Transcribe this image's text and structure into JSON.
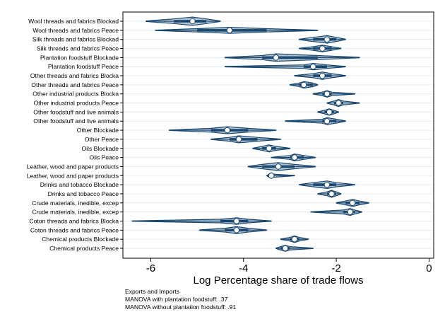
{
  "chart_data": {
    "type": "violin",
    "title": "",
    "xlabel": "Log Percentage share of trade flows",
    "ylabel": "",
    "xlim": [
      -6.6,
      0.1
    ],
    "xticks": [
      -6,
      -4,
      -2,
      0
    ],
    "xtick_labels": [
      "-6",
      "-4",
      "-2",
      "0"
    ],
    "grid": "horizontal",
    "fill_color": "#1a476f",
    "categories": [
      "Wool threads and fabrics Blockad",
      "Wool threads and fabrics Peace",
      "Silk threads and fabrics Blockad",
      "Silk threads and fabrics Peace",
      "Plantation foodstuff Blockade",
      "Plantation foodstuff Peace",
      "Other threads and fabrics Blocka",
      "Other threads and fabrics Peace",
      "Other industrial products Blocka",
      "Other industrial products Peace",
      "Other foodstuff and live animals",
      "Other foodstuff and live animals",
      "Other Blockade",
      "Other Peace",
      "Oils Blockade",
      "Oils Peace",
      "Leather, wood and paper products",
      "Leather, wood and paper products",
      "Drinks and tobacco Blockade",
      "Drinks and tobacco Peace",
      "Crude materials, inedible, excep",
      "Crude materials, inedible, excep",
      "Coton threads and fabrics Blocka",
      "Coton threads and fabrics Peace",
      "Chemical products Blockade",
      "Chemical products Peace"
    ],
    "series": [
      {
        "min": -6.1,
        "q1": -5.5,
        "median": -5.1,
        "q3": -4.8,
        "max": -4.5,
        "width": 0.9
      },
      {
        "min": -5.9,
        "q1": -5.0,
        "median": -4.3,
        "q3": -3.5,
        "max": -2.4,
        "width": 0.65
      },
      {
        "min": -2.8,
        "q1": -2.5,
        "median": -2.2,
        "q3": -2.0,
        "max": -1.8,
        "width": 0.8
      },
      {
        "min": -2.8,
        "q1": -2.5,
        "median": -2.3,
        "q3": -2.1,
        "max": -1.9,
        "width": 0.7
      },
      {
        "min": -4.4,
        "q1": -3.6,
        "median": -3.3,
        "q3": -2.4,
        "max": -1.5,
        "width": 0.8
      },
      {
        "min": -4.4,
        "q1": -2.7,
        "median": -2.5,
        "q3": -2.2,
        "max": -1.8,
        "width": 0.7
      },
      {
        "min": -2.9,
        "q1": -2.5,
        "median": -2.3,
        "q3": -2.1,
        "max": -1.8,
        "width": 0.8
      },
      {
        "min": -3.0,
        "q1": -2.8,
        "median": -2.7,
        "q3": -2.5,
        "max": -2.4,
        "width": 0.7
      },
      {
        "min": -2.5,
        "q1": -2.3,
        "median": -2.2,
        "q3": -2.1,
        "max": -1.6,
        "width": 0.7
      },
      {
        "min": -2.2,
        "q1": -2.05,
        "median": -1.95,
        "q3": -1.85,
        "max": -1.5,
        "width": 0.75
      },
      {
        "min": -2.4,
        "q1": -2.25,
        "median": -2.15,
        "q3": -2.05,
        "max": -1.95,
        "width": 0.7
      },
      {
        "min": -3.1,
        "q1": -2.3,
        "median": -2.2,
        "q3": -2.0,
        "max": -1.8,
        "width": 0.75
      },
      {
        "min": -5.6,
        "q1": -4.7,
        "median": -4.35,
        "q3": -3.9,
        "max": -3.3,
        "width": 0.75
      },
      {
        "min": -4.7,
        "q1": -4.3,
        "median": -4.1,
        "q3": -3.7,
        "max": -3.2,
        "width": 0.75
      },
      {
        "min": -3.8,
        "q1": -3.6,
        "median": -3.45,
        "q3": -3.3,
        "max": -3.0,
        "width": 0.75
      },
      {
        "min": -3.4,
        "q1": -3.0,
        "median": -2.9,
        "q3": -2.7,
        "max": -2.45,
        "width": 0.75
      },
      {
        "min": -3.9,
        "q1": -3.6,
        "median": -3.25,
        "q3": -2.9,
        "max": -2.45,
        "width": 0.85
      },
      {
        "min": -3.5,
        "q1": -3.45,
        "median": -3.4,
        "q3": -3.35,
        "max": -2.9,
        "width": 0.6
      },
      {
        "min": -2.8,
        "q1": -2.5,
        "median": -2.2,
        "q3": -2.0,
        "max": -1.6,
        "width": 0.8
      },
      {
        "min": -2.4,
        "q1": -2.2,
        "median": -2.1,
        "q3": -2.0,
        "max": -1.9,
        "width": 0.75
      },
      {
        "min": -2.0,
        "q1": -1.8,
        "median": -1.65,
        "q3": -1.5,
        "max": -1.3,
        "width": 0.75
      },
      {
        "min": -2.55,
        "q1": -1.85,
        "median": -1.7,
        "q3": -1.6,
        "max": -1.45,
        "width": 0.75
      },
      {
        "min": -6.4,
        "q1": -4.5,
        "median": -4.15,
        "q3": -3.9,
        "max": -3.4,
        "width": 0.7
      },
      {
        "min": -4.95,
        "q1": -4.4,
        "median": -4.15,
        "q3": -3.9,
        "max": -3.5,
        "width": 0.75
      },
      {
        "min": -3.2,
        "q1": -3.0,
        "median": -2.9,
        "q3": -2.8,
        "max": -2.6,
        "width": 0.7
      },
      {
        "min": -3.3,
        "q1": -3.2,
        "median": -3.1,
        "q3": -3.0,
        "max": -2.5,
        "width": 0.65
      }
    ]
  },
  "notes": [
    "Exports and Imports",
    "MANOVA with plantation foodstuff: .37",
    "MANOVA without plantation foodstuff: .91"
  ]
}
